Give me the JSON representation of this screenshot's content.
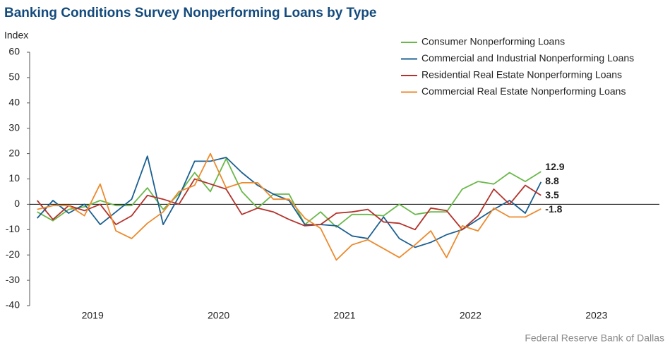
{
  "chart_data": {
    "type": "line",
    "title": "Banking Conditions Survey Nonperforming Loans by Type",
    "ylabel": "Index",
    "source": "Federal Reserve Bank of Dallas",
    "legend": "upper right",
    "grid": false,
    "xlim": [
      2019,
      2024
    ],
    "xticks": [
      {
        "value": 2019.5,
        "label": "2019"
      },
      {
        "value": 2020.5,
        "label": "2020"
      },
      {
        "value": 2021.5,
        "label": "2021"
      },
      {
        "value": 2022.5,
        "label": "2022"
      },
      {
        "value": 2023.5,
        "label": "2023"
      }
    ],
    "ylim": [
      -40,
      60
    ],
    "yticks": [
      -40,
      -30,
      -20,
      -10,
      0,
      10,
      20,
      30,
      40,
      50,
      60
    ],
    "x": [
      2019.06,
      2019.185,
      2019.31,
      2019.435,
      2019.56,
      2019.685,
      2019.81,
      2019.935,
      2020.06,
      2020.185,
      2020.31,
      2020.435,
      2020.56,
      2020.685,
      2020.81,
      2020.935,
      2021.06,
      2021.185,
      2021.31,
      2021.435,
      2021.56,
      2021.685,
      2021.81,
      2021.935,
      2022.06,
      2022.185,
      2022.31,
      2022.435,
      2022.56,
      2022.685,
      2022.81,
      2022.935,
      2023.06
    ],
    "series": [
      {
        "name": "Consumer Nonperforming Loans",
        "color": "#6ab84a",
        "values": [
          -3,
          -6.5,
          -2,
          -1,
          1.5,
          -0.5,
          -0.5,
          6.5,
          -2,
          4,
          12.5,
          5,
          18,
          5,
          -1.5,
          4,
          4,
          -8,
          -3,
          -9,
          -4,
          -4,
          -4.5,
          0,
          -4,
          -3,
          -3,
          6,
          9,
          8,
          12.5,
          9,
          12.9
        ]
      },
      {
        "name": "Commercial and Industrial Nonperforming Loans",
        "color": "#1a5f91",
        "values": [
          -5.5,
          1.5,
          -3.5,
          0,
          -8,
          -3,
          2,
          19,
          -8,
          3,
          17,
          17,
          18.5,
          12.5,
          7.5,
          4,
          1.5,
          -8,
          -8,
          -8.5,
          -12.5,
          -13.5,
          -5,
          -13.5,
          -17,
          -15,
          -12,
          -10,
          -6,
          -2,
          1.5,
          -3.5,
          8.8
        ]
      },
      {
        "name": "Residential Real Estate Nonperforming Loans",
        "color": "#b3322b",
        "values": [
          1.5,
          -6,
          -0.5,
          -2.5,
          0,
          -8,
          -4.5,
          3.5,
          2,
          0,
          10,
          8,
          6,
          -4,
          -1.5,
          -3,
          -6,
          -8.5,
          -8,
          -3.5,
          -3,
          -2,
          -7,
          -7.5,
          -10,
          -1.5,
          -2.5,
          -10,
          -4.5,
          6,
          0,
          7.5,
          3.5
        ]
      },
      {
        "name": "Commercial Real Estate Nonperforming Loans",
        "color": "#ec8a2d",
        "values": [
          -2,
          -0.5,
          -0.5,
          -4.5,
          8,
          -10.5,
          -13.5,
          -7.5,
          -3,
          5,
          7.5,
          20,
          6.5,
          8.5,
          8.5,
          2,
          2,
          -5.5,
          -9.5,
          -22,
          -16,
          -14,
          -17.5,
          -21,
          -16,
          -10.5,
          -21,
          -8.5,
          -10.5,
          -1.5,
          -5,
          -5,
          -1.8
        ]
      }
    ]
  }
}
